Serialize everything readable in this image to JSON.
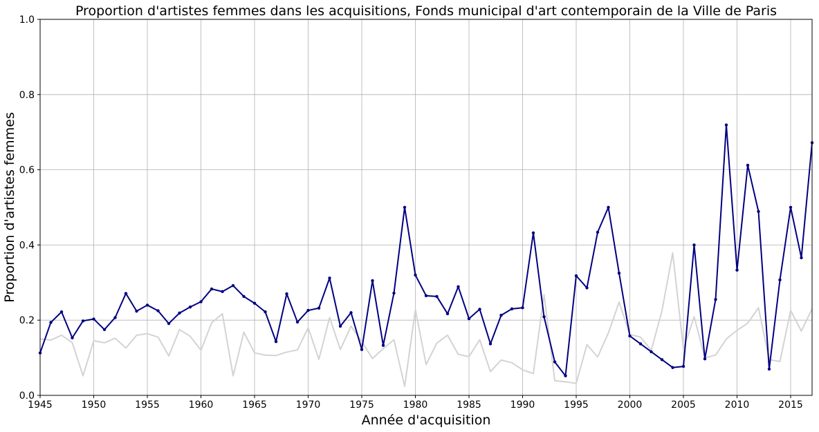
{
  "chart_data": {
    "type": "line",
    "title": "Proportion d'artistes femmes dans les acquisitions, Fonds municipal d'art contemporain de la Ville de Paris",
    "xlabel": "Année d'acquisition",
    "ylabel": "Proportion d'artistes femmes",
    "xlim": [
      1945,
      2017
    ],
    "ylim": [
      0,
      1
    ],
    "xticks": [
      "1945",
      "1950",
      "1955",
      "1960",
      "1965",
      "1970",
      "1975",
      "1980",
      "1985",
      "1990",
      "1995",
      "2000",
      "2005",
      "2010",
      "2015"
    ],
    "yticks": [
      "0.0",
      "0.2",
      "0.4",
      "0.6",
      "0.8",
      "1.0"
    ],
    "grid": true,
    "series": [
      {
        "color": "#000080",
        "markers": true,
        "x": [
          1945,
          1946,
          1947,
          1948,
          1949,
          1950,
          1951,
          1952,
          1953,
          1954,
          1955,
          1956,
          1957,
          1958,
          1959,
          1960,
          1961,
          1962,
          1963,
          1964,
          1965,
          1966,
          1967,
          1968,
          1969,
          1970,
          1971,
          1972,
          1973,
          1974,
          1975,
          1976,
          1977,
          1978,
          1979,
          1980,
          1981,
          1982,
          1983,
          1984,
          1985,
          1986,
          1987,
          1988,
          1989,
          1990,
          1991,
          1992,
          1993,
          1994,
          1995,
          1996,
          1997,
          1998,
          1999,
          2000,
          2001,
          2002,
          2003,
          2004,
          2005,
          2006,
          2007,
          2008,
          2009,
          2010,
          2011,
          2012,
          2013,
          2014,
          2015,
          2016,
          2017
        ],
        "values": [
          0.113,
          0.194,
          0.222,
          0.153,
          0.198,
          0.203,
          0.175,
          0.207,
          0.271,
          0.224,
          0.24,
          0.225,
          0.191,
          0.219,
          0.235,
          0.249,
          0.283,
          0.276,
          0.292,
          0.263,
          0.245,
          0.222,
          0.143,
          0.27,
          0.195,
          0.226,
          0.232,
          0.312,
          0.184,
          0.22,
          0.122,
          0.305,
          0.133,
          0.272,
          0.5,
          0.32,
          0.265,
          0.263,
          0.217,
          0.289,
          0.204,
          0.229,
          0.137,
          0.213,
          0.23,
          0.233,
          0.432,
          0.209,
          0.089,
          0.052,
          0.318,
          0.286,
          0.434,
          0.5,
          0.325,
          0.158,
          0.137,
          0.116,
          0.095,
          0.074,
          0.077,
          0.4,
          0.097,
          0.255,
          0.719,
          0.333,
          0.612,
          0.489,
          0.07,
          0.307,
          0.5,
          0.366,
          0.672
        ]
      },
      {
        "color": "#d3d3d3",
        "markers": false,
        "x": [
          1945,
          1946,
          1947,
          1948,
          1949,
          1950,
          1951,
          1952,
          1953,
          1954,
          1955,
          1956,
          1957,
          1958,
          1959,
          1960,
          1961,
          1962,
          1963,
          1964,
          1965,
          1966,
          1967,
          1968,
          1969,
          1970,
          1971,
          1972,
          1973,
          1974,
          1975,
          1976,
          1977,
          1978,
          1979,
          1980,
          1981,
          1982,
          1983,
          1984,
          1985,
          1986,
          1987,
          1988,
          1989,
          1990,
          1991,
          1992,
          1993,
          1994,
          1995,
          1996,
          1997,
          1998,
          1999,
          2000,
          2001,
          2002,
          2003,
          2004,
          2005,
          2006,
          2007,
          2008,
          2009,
          2010,
          2011,
          2012,
          2013,
          2014,
          2015,
          2016,
          2017
        ],
        "values": [
          0.15,
          0.147,
          0.16,
          0.14,
          0.052,
          0.145,
          0.14,
          0.152,
          0.126,
          0.16,
          0.164,
          0.155,
          0.105,
          0.175,
          0.157,
          0.12,
          0.193,
          0.217,
          0.052,
          0.168,
          0.113,
          0.107,
          0.106,
          0.115,
          0.121,
          0.18,
          0.096,
          0.207,
          0.122,
          0.184,
          0.143,
          0.098,
          0.124,
          0.148,
          0.024,
          0.228,
          0.082,
          0.139,
          0.16,
          0.109,
          0.103,
          0.148,
          0.063,
          0.094,
          0.087,
          0.068,
          0.058,
          0.268,
          0.039,
          0.036,
          0.032,
          0.135,
          0.102,
          0.166,
          0.248,
          0.162,
          0.155,
          0.12,
          0.225,
          0.379,
          0.123,
          0.209,
          0.1,
          0.107,
          0.15,
          0.173,
          0.192,
          0.233,
          0.095,
          0.09,
          0.226,
          0.171,
          0.23
        ]
      }
    ]
  }
}
